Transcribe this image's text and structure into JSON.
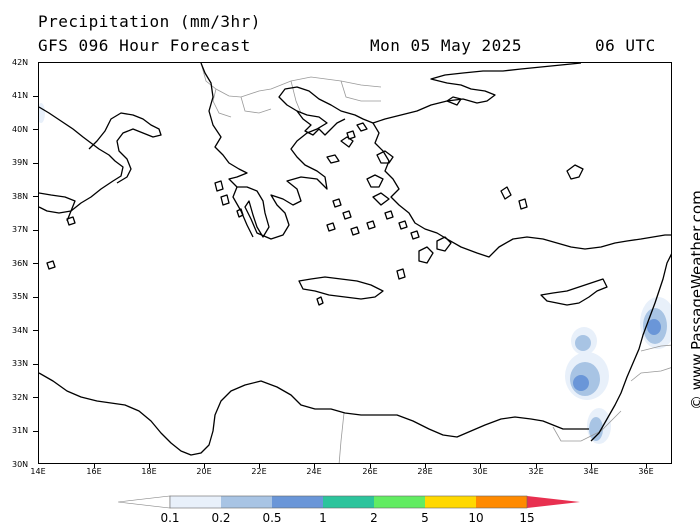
{
  "header": {
    "title": "Precipitation (mm/3hr)",
    "model": "GFS 096 Hour Forecast",
    "valid_date": "Mon 05 May 2025",
    "valid_time": "06 UTC"
  },
  "credit": "© www.PassageWeather.com",
  "axes": {
    "latitudes": [
      "42N",
      "41N",
      "40N",
      "39N",
      "38N",
      "37N",
      "36N",
      "35N",
      "34N",
      "33N",
      "32N",
      "31N",
      "30N"
    ],
    "longitudes": [
      "14E",
      "16E",
      "18E",
      "20E",
      "22E",
      "24E",
      "26E",
      "28E",
      "30E",
      "32E",
      "34E",
      "36E"
    ]
  },
  "legend": {
    "labels": [
      "0.1",
      "0.2",
      "0.5",
      "1",
      "2",
      "5",
      "10",
      "15"
    ],
    "colors": [
      "#e8f0fa",
      "#a8c4e4",
      "#6a96d8",
      "#2cc49c",
      "#62ec62",
      "#ffd800",
      "#ff8a00",
      "#e83050"
    ]
  }
}
